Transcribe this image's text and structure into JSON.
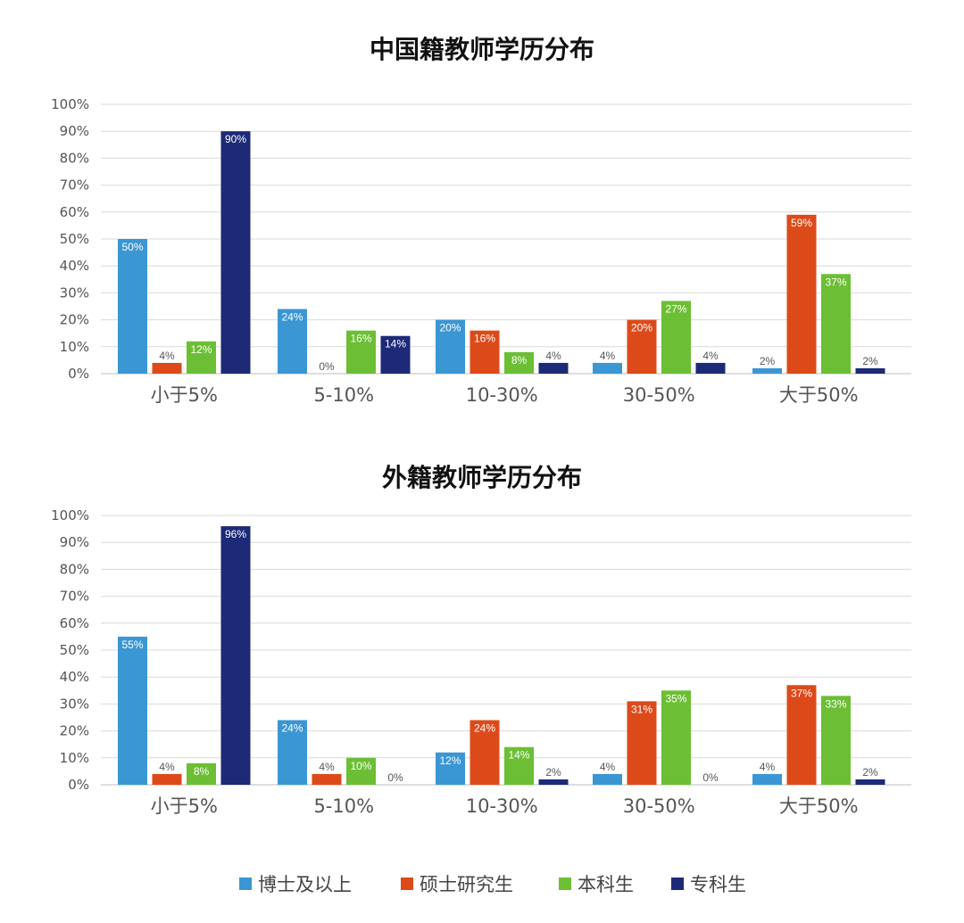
{
  "chart_data": [
    {
      "type": "bar",
      "title": "中国籍教师学历分布",
      "categories": [
        "小于5%",
        "5-10%",
        "10-30%",
        "30-50%",
        "大于50%"
      ],
      "y_tick_labels": [
        "0%",
        "10%",
        "20%",
        "30%",
        "40%",
        "50%",
        "60%",
        "70%",
        "80%",
        "90%",
        "100%"
      ],
      "ylim": [
        0,
        100
      ],
      "grid": true,
      "series": [
        {
          "name": "博士及以上",
          "color": "#3b96d4",
          "values": [
            50,
            24,
            20,
            4,
            2
          ],
          "labels": [
            "50%",
            "24%",
            "20%",
            "4%",
            "2%"
          ]
        },
        {
          "name": "硕士研究生",
          "color": "#dd4a1a",
          "values": [
            4,
            0,
            16,
            20,
            59
          ],
          "labels": [
            "4%",
            "0%",
            "16%",
            "20%",
            "59%"
          ]
        },
        {
          "name": "本科生",
          "color": "#6cbf34",
          "values": [
            12,
            16,
            8,
            27,
            37
          ],
          "labels": [
            "12%",
            "16%",
            "8%",
            "27%",
            "37%"
          ]
        },
        {
          "name": "专科生",
          "color": "#1c2a78",
          "values": [
            90,
            14,
            4,
            4,
            2
          ],
          "labels": [
            "90%",
            "14%",
            "4%",
            "4%",
            "2%"
          ]
        }
      ]
    },
    {
      "type": "bar",
      "title": "外籍教师学历分布",
      "categories": [
        "小于5%",
        "5-10%",
        "10-30%",
        "30-50%",
        "大于50%"
      ],
      "y_tick_labels": [
        "0%",
        "10%",
        "20%",
        "30%",
        "40%",
        "50%",
        "60%",
        "70%",
        "80%",
        "90%",
        "100%"
      ],
      "ylim": [
        0,
        100
      ],
      "grid": true,
      "series": [
        {
          "name": "博士及以上",
          "color": "#3b96d4",
          "values": [
            55,
            24,
            12,
            4,
            4
          ],
          "labels": [
            "55%",
            "24%",
            "12%",
            "4%",
            "4%"
          ]
        },
        {
          "name": "硕士研究生",
          "color": "#dd4a1a",
          "values": [
            4,
            4,
            24,
            31,
            37
          ],
          "labels": [
            "4%",
            "4%",
            "24%",
            "31%",
            "37%"
          ]
        },
        {
          "name": "本科生",
          "color": "#6cbf34",
          "values": [
            8,
            10,
            14,
            35,
            33
          ],
          "labels": [
            "8%",
            "10%",
            "14%",
            "35%",
            "33%"
          ]
        },
        {
          "name": "专科生",
          "color": "#1c2a78",
          "values": [
            96,
            0,
            2,
            0,
            2
          ],
          "labels": [
            "96%",
            "0%",
            "2%",
            "0%",
            "2%"
          ]
        }
      ]
    }
  ],
  "legend": {
    "placement": "bottom",
    "items": [
      {
        "label": "博士及以上",
        "color": "#3b96d4"
      },
      {
        "label": "硕士研究生",
        "color": "#dd4a1a"
      },
      {
        "label": "本科生",
        "color": "#6cbf34"
      },
      {
        "label": "专科生",
        "color": "#1c2a78"
      }
    ]
  }
}
